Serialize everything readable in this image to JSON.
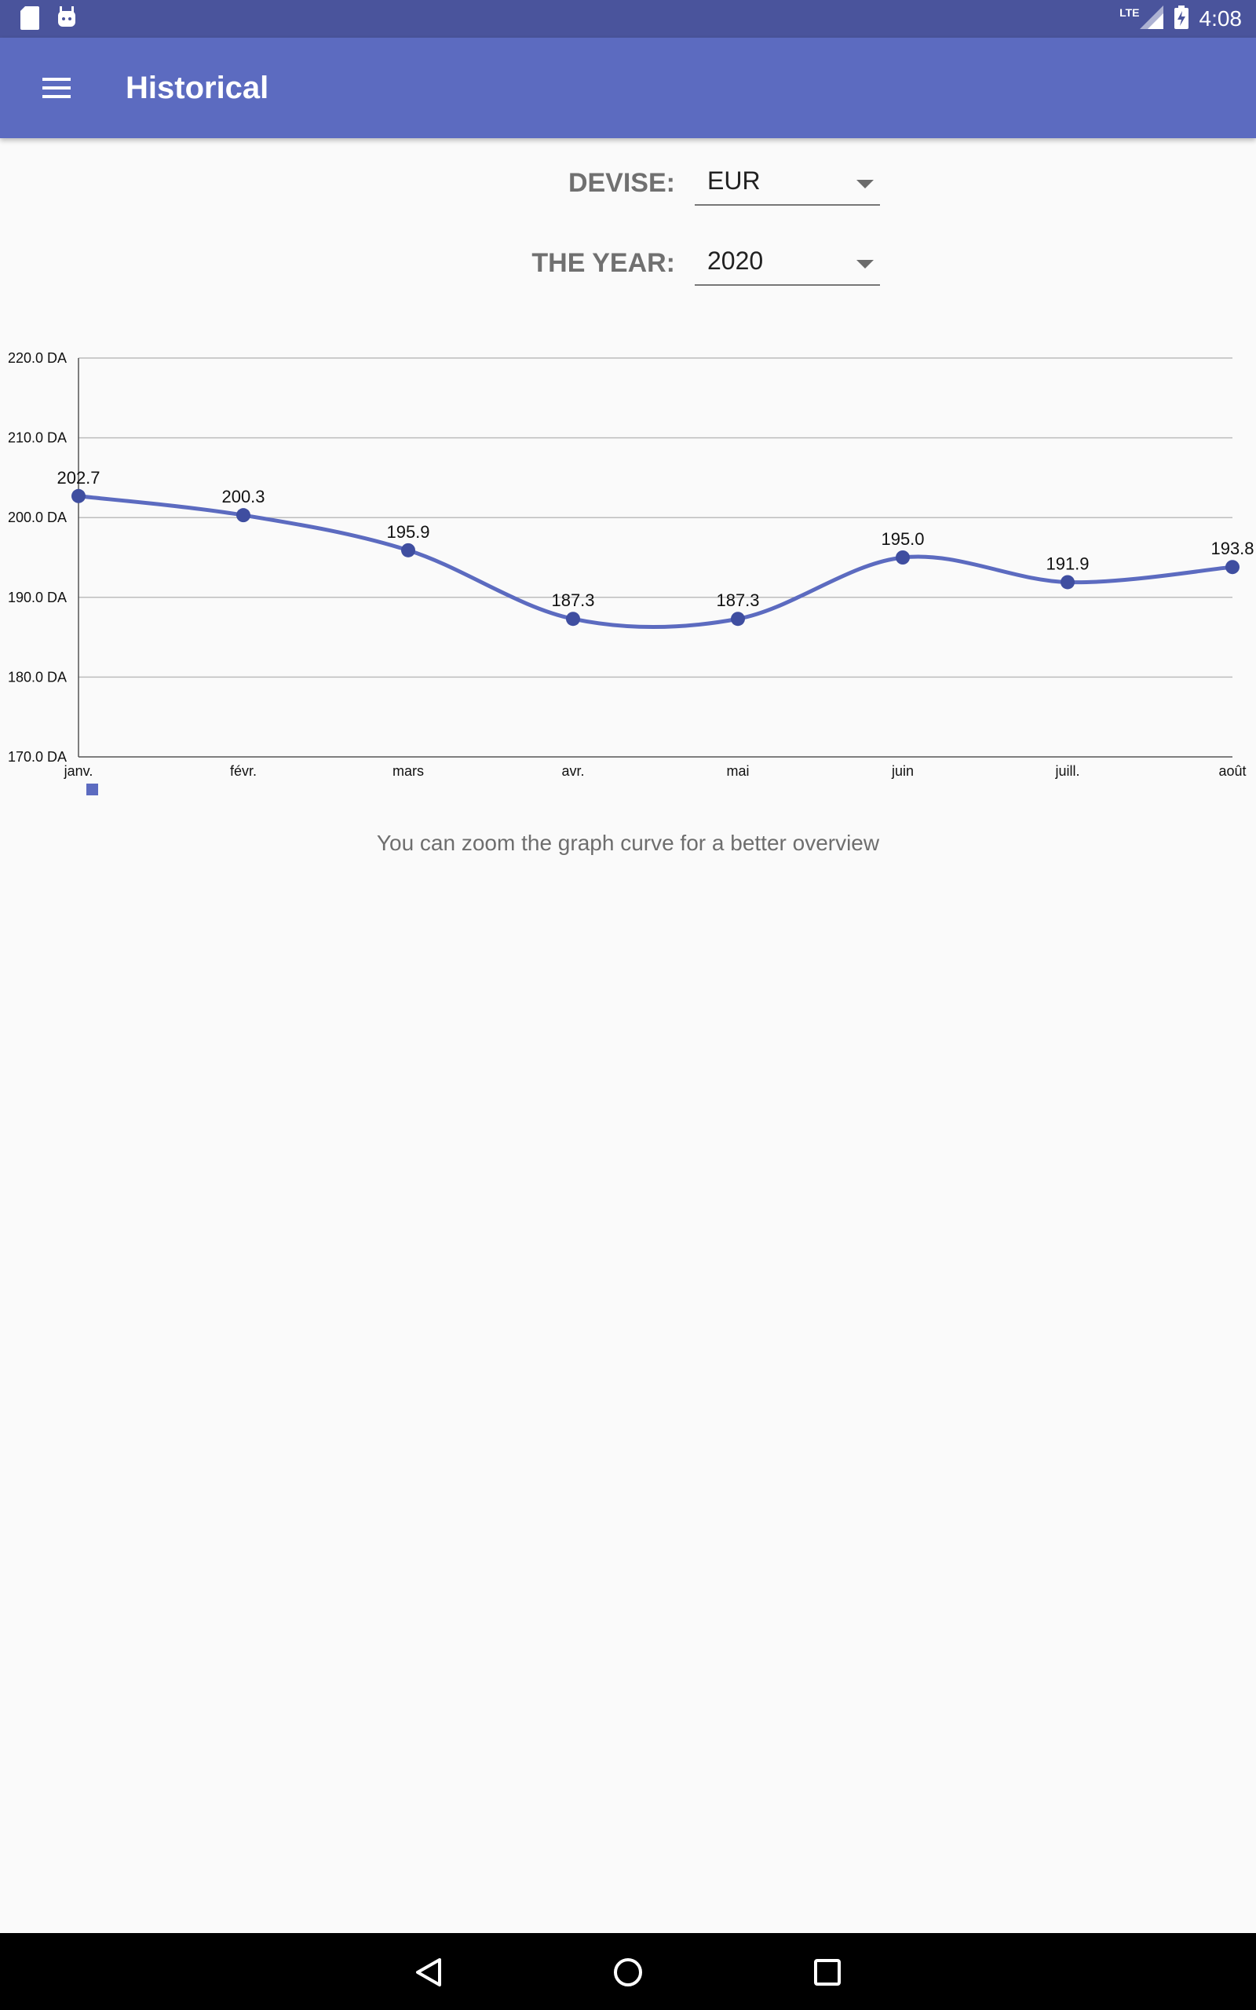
{
  "status_bar": {
    "time": "4:08",
    "network": "LTE",
    "icons": [
      "sd-card-icon",
      "android-icon",
      "signal-icon",
      "battery-charging-icon"
    ]
  },
  "app_bar": {
    "title": "Historical",
    "menu_icon": "hamburger-menu-icon"
  },
  "filters": {
    "currency_label": "DEVISE:",
    "currency_value": "EUR",
    "year_label": "THE YEAR:",
    "year_value": "2020"
  },
  "chart_data": {
    "type": "line",
    "categories": [
      "janv.",
      "févr.",
      "mars",
      "avr.",
      "mai",
      "juin",
      "juill.",
      "août"
    ],
    "series": [
      {
        "values": [
          202.7,
          200.3,
          195.9,
          187.3,
          187.3,
          195.0,
          191.9,
          193.8
        ],
        "data_labels": [
          "202.7",
          "200.3",
          "195.9",
          "187.3",
          "187.3",
          "195.0",
          "191.9",
          "193.8"
        ],
        "color": "#5c6bc0"
      }
    ],
    "ylim": [
      170,
      220
    ],
    "y_ticks": [
      220,
      210,
      200,
      190,
      180,
      170
    ],
    "y_tick_labels": [
      "220.0 DA",
      "210.0 DA",
      "200.0 DA",
      "190.0 DA",
      "180.0 DA",
      "170.0 DA"
    ],
    "smooth": true,
    "grid": true,
    "legend": "bottom-left"
  },
  "hint_text": "You can zoom the graph curve for a better overview",
  "nav_bar": {
    "icons": [
      "back-icon",
      "home-icon",
      "recents-icon"
    ]
  },
  "colors": {
    "status_bar": "#4a549c",
    "app_bar": "#5c6bc0",
    "accent": "#5c6bc0"
  }
}
